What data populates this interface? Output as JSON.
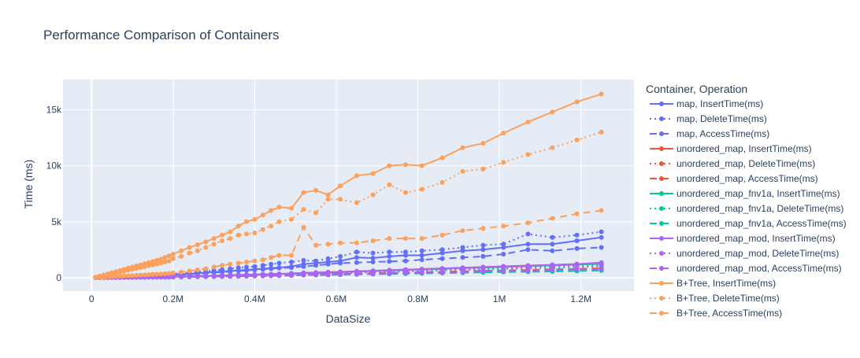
{
  "chart_data": {
    "type": "line",
    "title": "Performance Comparison of Containers",
    "xlabel": "DataSize",
    "ylabel": "Time (ms)",
    "xlim": [
      -70000,
      1330000
    ],
    "ylim": [
      -1200,
      17700
    ],
    "x_ticks": [
      {
        "v": 0,
        "label": "0"
      },
      {
        "v": 200000,
        "label": "0.2M"
      },
      {
        "v": 400000,
        "label": "0.4M"
      },
      {
        "v": 600000,
        "label": "0.6M"
      },
      {
        "v": 800000,
        "label": "0.8M"
      },
      {
        "v": 1000000,
        "label": "1M"
      },
      {
        "v": 1200000,
        "label": "1.2M"
      }
    ],
    "y_ticks": [
      {
        "v": 0,
        "label": "0"
      },
      {
        "v": 5000,
        "label": "5k"
      },
      {
        "v": 10000,
        "label": "10k"
      },
      {
        "v": 15000,
        "label": "15k"
      }
    ],
    "grid": true,
    "plot_bgcolor": "#E5ECF6",
    "legend": {
      "title": "Container, Operation",
      "placement": "right"
    },
    "x": [
      10000,
      20000,
      30000,
      40000,
      50000,
      60000,
      70000,
      80000,
      90000,
      100000,
      110000,
      120000,
      130000,
      140000,
      150000,
      160000,
      170000,
      180000,
      190000,
      200000,
      220000,
      240000,
      260000,
      280000,
      300000,
      320000,
      340000,
      360000,
      380000,
      400000,
      420000,
      440000,
      460000,
      490000,
      520000,
      550000,
      580000,
      610000,
      650000,
      690000,
      730000,
      770000,
      810000,
      860000,
      910000,
      960000,
      1010000,
      1070000,
      1130000,
      1190000,
      1250000
    ],
    "series": [
      {
        "name": "map, InsertTime(ms)",
        "color": "#636efa",
        "dash": "solid",
        "values": [
          10,
          20,
          30,
          40,
          50,
          60,
          70,
          80,
          95,
          110,
          125,
          140,
          155,
          170,
          185,
          200,
          215,
          230,
          250,
          270,
          300,
          350,
          400,
          450,
          500,
          550,
          600,
          650,
          700,
          750,
          800,
          850,
          900,
          1000,
          1200,
          1300,
          1400,
          1500,
          1800,
          1750,
          1900,
          2000,
          2000,
          2200,
          2400,
          2500,
          2700,
          3000,
          3000,
          3300,
          3600
        ]
      },
      {
        "name": "map, DeleteTime(ms)",
        "color": "#636efa",
        "dash": "dot",
        "values": [
          10,
          25,
          40,
          55,
          70,
          85,
          100,
          115,
          130,
          150,
          165,
          180,
          200,
          215,
          230,
          250,
          270,
          290,
          320,
          350,
          400,
          450,
          520,
          580,
          650,
          720,
          800,
          880,
          950,
          1000,
          1100,
          1200,
          1300,
          1400,
          1550,
          1500,
          1700,
          1900,
          2300,
          2200,
          2300,
          2300,
          2400,
          2500,
          2700,
          2900,
          3000,
          3900,
          3600,
          3800,
          4100
        ]
      },
      {
        "name": "map, AccessTime(ms)",
        "color": "#636efa",
        "dash": "dash",
        "values": [
          5,
          15,
          25,
          35,
          45,
          55,
          65,
          75,
          85,
          95,
          105,
          115,
          125,
          135,
          145,
          155,
          165,
          175,
          185,
          200,
          250,
          300,
          350,
          400,
          450,
          500,
          550,
          600,
          650,
          700,
          750,
          800,
          850,
          900,
          1000,
          1100,
          1200,
          1300,
          1350,
          1400,
          1450,
          1500,
          1600,
          1700,
          1800,
          1900,
          2100,
          2500,
          2400,
          2600,
          2700
        ]
      },
      {
        "name": "unordered_map, InsertTime(ms)",
        "color": "#ef553b",
        "dash": "solid",
        "values": [
          5,
          10,
          15,
          20,
          25,
          30,
          35,
          40,
          45,
          50,
          55,
          60,
          65,
          70,
          75,
          80,
          85,
          90,
          95,
          100,
          110,
          120,
          140,
          160,
          180,
          200,
          220,
          240,
          260,
          280,
          300,
          320,
          340,
          380,
          420,
          450,
          490,
          520,
          570,
          620,
          670,
          720,
          770,
          830,
          890,
          950,
          1010,
          1080,
          1150,
          1220,
          1290
        ]
      },
      {
        "name": "unordered_map, DeleteTime(ms)",
        "color": "#ef553b",
        "dash": "dot",
        "values": [
          5,
          10,
          15,
          20,
          25,
          30,
          35,
          40,
          45,
          50,
          55,
          60,
          65,
          70,
          75,
          80,
          85,
          90,
          95,
          100,
          110,
          120,
          135,
          150,
          165,
          180,
          200,
          220,
          240,
          260,
          280,
          300,
          320,
          350,
          390,
          420,
          450,
          480,
          520,
          560,
          600,
          650,
          700,
          760,
          820,
          870,
          930,
          990,
          1060,
          1120,
          1190
        ]
      },
      {
        "name": "unordered_map, AccessTime(ms)",
        "color": "#ef553b",
        "dash": "dash",
        "values": [
          3,
          6,
          9,
          12,
          15,
          18,
          21,
          24,
          27,
          30,
          33,
          36,
          40,
          44,
          48,
          52,
          56,
          60,
          64,
          68,
          75,
          85,
          95,
          105,
          115,
          125,
          140,
          155,
          170,
          185,
          200,
          215,
          230,
          250,
          280,
          300,
          320,
          340,
          370,
          400,
          430,
          460,
          490,
          530,
          570,
          610,
          650,
          690,
          740,
          790,
          840
        ]
      },
      {
        "name": "unordered_map_fnv1a, InsertTime(ms)",
        "color": "#00cc96",
        "dash": "solid",
        "values": [
          5,
          10,
          15,
          20,
          25,
          30,
          35,
          40,
          45,
          50,
          55,
          60,
          65,
          70,
          75,
          80,
          85,
          90,
          95,
          100,
          110,
          125,
          140,
          155,
          170,
          190,
          210,
          230,
          250,
          270,
          290,
          310,
          330,
          370,
          400,
          430,
          460,
          490,
          540,
          590,
          630,
          680,
          730,
          790,
          850,
          900,
          960,
          1030,
          1100,
          1170,
          1230
        ]
      },
      {
        "name": "unordered_map_fnv1a, DeleteTime(ms)",
        "color": "#00cc96",
        "dash": "dot",
        "values": [
          4,
          8,
          12,
          16,
          20,
          24,
          28,
          32,
          36,
          40,
          44,
          48,
          52,
          56,
          60,
          64,
          68,
          72,
          76,
          80,
          90,
          100,
          110,
          125,
          140,
          155,
          170,
          185,
          200,
          215,
          230,
          245,
          260,
          290,
          320,
          350,
          380,
          400,
          440,
          480,
          520,
          550,
          590,
          640,
          690,
          730,
          780,
          830,
          890,
          950,
          1000
        ]
      },
      {
        "name": "unordered_map_fnv1a, AccessTime(ms)",
        "color": "#00cc96",
        "dash": "dash",
        "values": [
          3,
          5,
          8,
          10,
          13,
          15,
          18,
          20,
          23,
          25,
          28,
          30,
          33,
          36,
          39,
          42,
          45,
          48,
          51,
          54,
          60,
          68,
          76,
          84,
          92,
          100,
          110,
          120,
          130,
          140,
          150,
          160,
          170,
          190,
          300,
          220,
          240,
          260,
          280,
          310,
          330,
          350,
          380,
          410,
          440,
          470,
          500,
          530,
          560,
          600,
          640
        ]
      },
      {
        "name": "unordered_map_mod, InsertTime(ms)",
        "color": "#ab63fa",
        "dash": "solid",
        "values": [
          5,
          10,
          15,
          20,
          25,
          30,
          35,
          40,
          45,
          50,
          55,
          60,
          65,
          70,
          75,
          80,
          85,
          90,
          95,
          100,
          115,
          130,
          145,
          160,
          175,
          195,
          215,
          235,
          255,
          275,
          300,
          320,
          340,
          380,
          420,
          450,
          480,
          510,
          560,
          610,
          660,
          710,
          760,
          820,
          880,
          940,
          1000,
          1070,
          1140,
          1210,
          1350
        ]
      },
      {
        "name": "unordered_map_mod, DeleteTime(ms)",
        "color": "#ab63fa",
        "dash": "dot",
        "values": [
          4,
          8,
          12,
          16,
          20,
          24,
          28,
          32,
          36,
          40,
          44,
          48,
          52,
          56,
          60,
          64,
          68,
          72,
          76,
          80,
          90,
          100,
          115,
          130,
          145,
          160,
          175,
          190,
          210,
          230,
          250,
          270,
          290,
          320,
          360,
          390,
          420,
          450,
          490,
          530,
          570,
          610,
          650,
          700,
          750,
          800,
          850,
          910,
          970,
          1030,
          1100
        ]
      },
      {
        "name": "unordered_map_mod, AccessTime(ms)",
        "color": "#ab63fa",
        "dash": "dash",
        "values": [
          3,
          6,
          9,
          12,
          15,
          18,
          21,
          24,
          27,
          30,
          33,
          36,
          39,
          42,
          45,
          48,
          51,
          54,
          57,
          60,
          68,
          76,
          84,
          92,
          100,
          110,
          120,
          130,
          140,
          150,
          160,
          170,
          180,
          200,
          220,
          240,
          260,
          280,
          310,
          340,
          370,
          400,
          430,
          470,
          510,
          550,
          590,
          630,
          680,
          730,
          780
        ]
      },
      {
        "name": "B+Tree, InsertTime(ms)",
        "color": "#fda05c",
        "dash": "solid",
        "values": [
          50,
          150,
          250,
          350,
          450,
          550,
          650,
          750,
          850,
          950,
          1050,
          1150,
          1250,
          1350,
          1450,
          1550,
          1650,
          1800,
          1950,
          2100,
          2400,
          2700,
          2950,
          3200,
          3500,
          3800,
          4100,
          4600,
          5000,
          5200,
          5600,
          6000,
          6300,
          6200,
          7600,
          7800,
          7400,
          8200,
          9100,
          9300,
          10000,
          10100,
          10000,
          10700,
          11600,
          12000,
          12900,
          13900,
          14800,
          15700,
          16400
        ]
      },
      {
        "name": "B+Tree, DeleteTime(ms)",
        "color": "#fda05c",
        "dash": "dot",
        "values": [
          30,
          100,
          180,
          260,
          340,
          420,
          500,
          580,
          660,
          740,
          820,
          900,
          980,
          1060,
          1140,
          1220,
          1300,
          1400,
          1500,
          1700,
          1900,
          2200,
          2400,
          2700,
          3000,
          3300,
          3500,
          3800,
          3900,
          4000,
          4300,
          4600,
          5000,
          5200,
          6100,
          5800,
          7000,
          7000,
          6700,
          7400,
          8300,
          7600,
          7900,
          8500,
          9500,
          9700,
          10300,
          11000,
          11600,
          12300,
          13000
        ]
      },
      {
        "name": "B+Tree, AccessTime(ms)",
        "color": "#fda05c",
        "dash": "dash",
        "values": [
          10,
          30,
          50,
          70,
          90,
          110,
          130,
          150,
          170,
          190,
          210,
          230,
          250,
          270,
          290,
          310,
          330,
          350,
          380,
          420,
          500,
          600,
          700,
          800,
          950,
          1100,
          1200,
          1300,
          1400,
          1500,
          1600,
          1800,
          2000,
          2000,
          4500,
          2900,
          3000,
          3100,
          3100,
          3300,
          3500,
          3500,
          3500,
          3800,
          4200,
          4400,
          4600,
          4900,
          5300,
          5700,
          6000
        ]
      }
    ]
  }
}
